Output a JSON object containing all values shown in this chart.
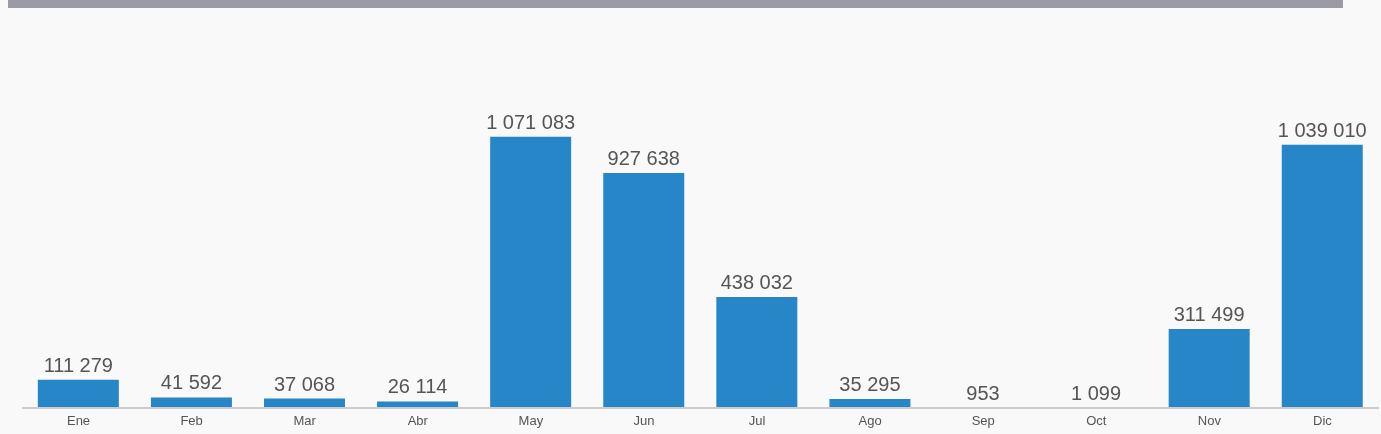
{
  "chart_data": {
    "type": "bar",
    "categories": [
      "Ene",
      "Feb",
      "Mar",
      "Abr",
      "May",
      "Jun",
      "Jul",
      "Ago",
      "Sep",
      "Oct",
      "Nov",
      "Dic"
    ],
    "values": [
      111279,
      41592,
      37068,
      26114,
      1071083,
      927638,
      438032,
      35295,
      953,
      1099,
      311499,
      1039010
    ],
    "value_labels": [
      "111 279",
      "41 592",
      "37 068",
      "26 114",
      "1 071 083",
      "927 638",
      "438 032",
      "35 295",
      "953",
      "1 099",
      "311 499",
      "1 039 010"
    ],
    "color": "#2786c8",
    "grid": false,
    "legend": false
  }
}
